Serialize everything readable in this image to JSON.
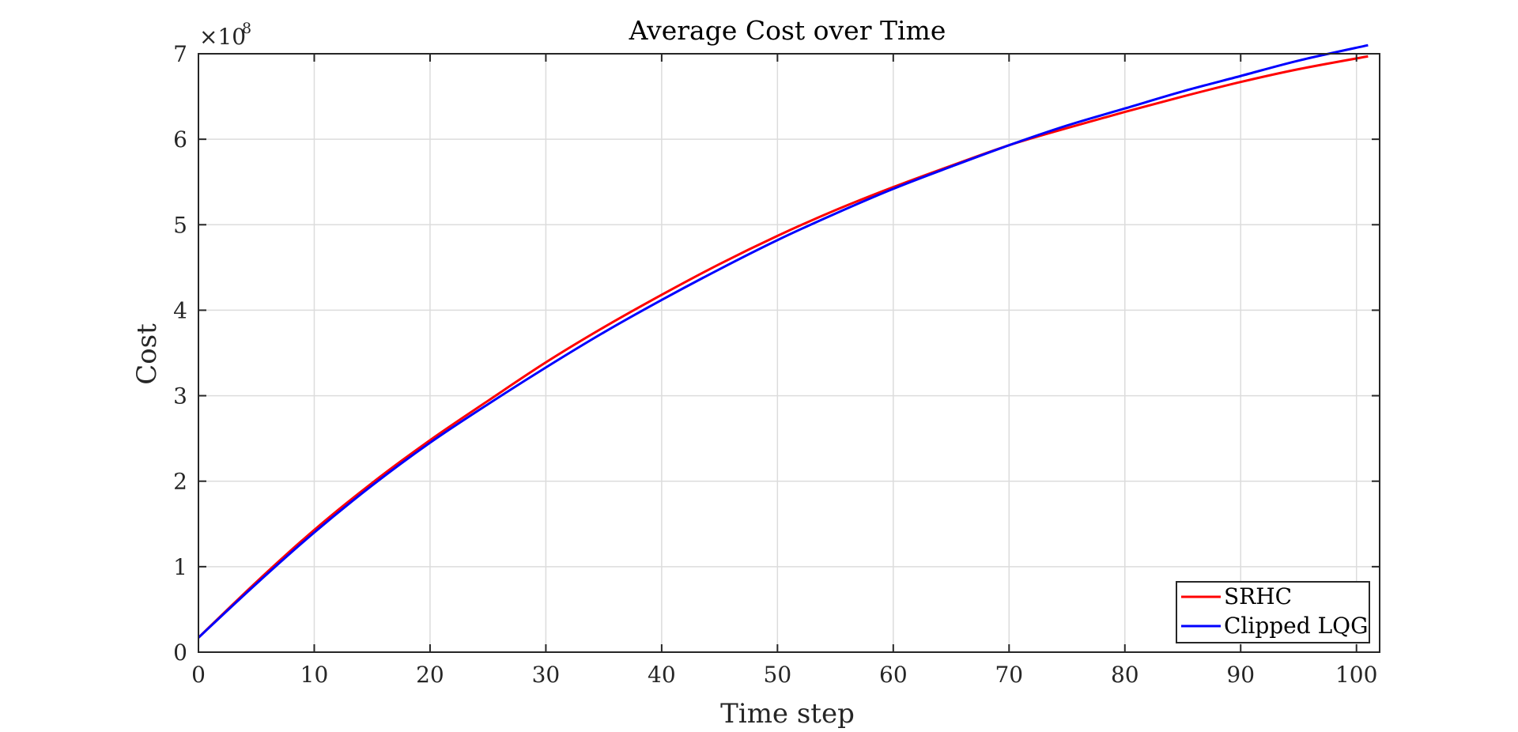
{
  "chart_data": {
    "type": "line",
    "title": "Average Cost over Time",
    "xlabel": "Time step",
    "ylabel": "Cost",
    "y_exponent_base": "×10",
    "y_exponent_power": "8",
    "xlim": [
      0,
      102
    ],
    "ylim": [
      0,
      7
    ],
    "x_ticks": [
      0,
      10,
      20,
      30,
      40,
      50,
      60,
      70,
      80,
      90,
      100
    ],
    "y_ticks": [
      0,
      1,
      2,
      3,
      4,
      5,
      6,
      7
    ],
    "grid": true,
    "legend_position": "bottom-right",
    "x": [
      0,
      5,
      10,
      15,
      20,
      25,
      30,
      35,
      40,
      45,
      50,
      55,
      60,
      65,
      70,
      75,
      80,
      85,
      90,
      95,
      101
    ],
    "series": [
      {
        "name": "SRHC",
        "color": "#ff0000",
        "values": [
          0.17,
          0.82,
          1.43,
          1.98,
          2.48,
          2.94,
          3.39,
          3.8,
          4.18,
          4.54,
          4.87,
          5.17,
          5.44,
          5.69,
          5.93,
          6.13,
          6.32,
          6.5,
          6.67,
          6.82,
          6.97
        ]
      },
      {
        "name": "Clipped LQG",
        "color": "#0000ff",
        "values": [
          0.17,
          0.8,
          1.4,
          1.95,
          2.45,
          2.9,
          3.33,
          3.74,
          4.12,
          4.48,
          4.82,
          5.13,
          5.42,
          5.68,
          5.93,
          6.16,
          6.36,
          6.56,
          6.74,
          6.92,
          7.1
        ]
      }
    ]
  }
}
